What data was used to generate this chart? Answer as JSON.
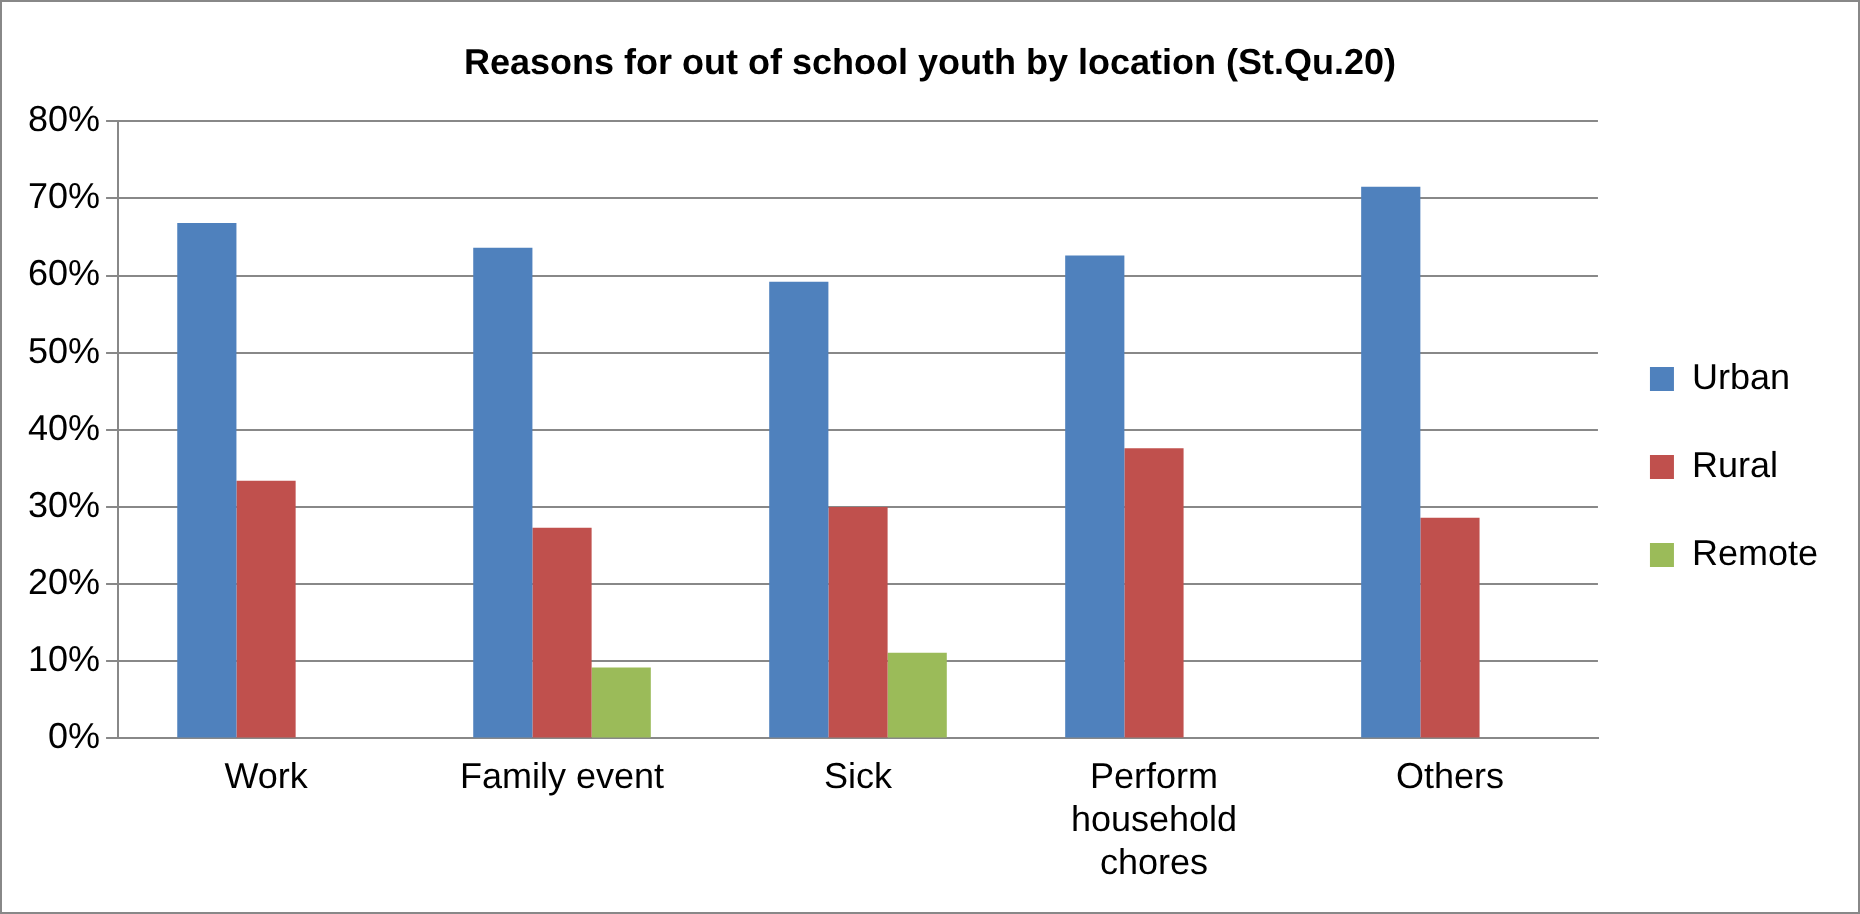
{
  "chart_data": {
    "type": "bar",
    "title": "Reasons for out of school youth by location (St.Qu.20)",
    "categories": [
      "Work",
      "Family event",
      "Sick",
      "Perform household chores",
      "Others"
    ],
    "series": [
      {
        "name": "Urban",
        "color": "#4f81bd",
        "values": [
          66.8,
          63.6,
          59.2,
          62.6,
          71.5
        ]
      },
      {
        "name": "Rural",
        "color": "#c0504d",
        "values": [
          33.4,
          27.3,
          30.0,
          37.6,
          28.6
        ]
      },
      {
        "name": "Remote",
        "color": "#9bbb59",
        "values": [
          null,
          9.2,
          11.1,
          null,
          null
        ]
      }
    ],
    "ylim": [
      0,
      80
    ],
    "yticks": [
      {
        "value": 0,
        "label": "0%"
      },
      {
        "value": 10,
        "label": "10%"
      },
      {
        "value": 20,
        "label": "20%"
      },
      {
        "value": 30,
        "label": "30%"
      },
      {
        "value": 40,
        "label": "40%"
      },
      {
        "value": 50,
        "label": "50%"
      },
      {
        "value": 60,
        "label": "60%"
      },
      {
        "value": 70,
        "label": "70%"
      },
      {
        "value": 80,
        "label": "80%"
      }
    ],
    "grid": "y",
    "legend": "right"
  }
}
